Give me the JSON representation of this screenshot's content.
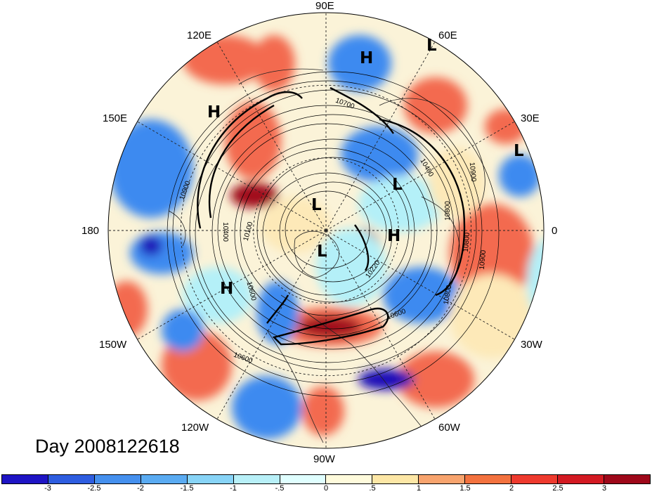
{
  "map": {
    "lon_labels": {
      "e90": "90E",
      "e60": "60E",
      "e30": "30E",
      "zero": "0",
      "w30": "30W",
      "w60": "60W",
      "w90": "90W",
      "w120": "120W",
      "w150": "150W",
      "dateline": "180",
      "e150": "150E",
      "e120": "120E"
    },
    "centers": [
      {
        "id": "h-north",
        "label": "H"
      },
      {
        "id": "l-ne",
        "label": "L"
      },
      {
        "id": "h-nw",
        "label": "H"
      },
      {
        "id": "l-east",
        "label": "L"
      },
      {
        "id": "l-europe",
        "label": "L"
      },
      {
        "id": "l-pole",
        "label": "L"
      },
      {
        "id": "h-atlantic",
        "label": "H"
      },
      {
        "id": "l-center",
        "label": "L"
      },
      {
        "id": "h-sw",
        "label": "H"
      }
    ],
    "contour_labels": {
      "c10900a": "10900",
      "c10400": "10400",
      "c10100": "10100",
      "c10600a": "10600",
      "c10900b": "10900",
      "c10800a": "10800",
      "c10800b": "10800",
      "c10900c": "10900",
      "c10600b": "10600",
      "c10220": "10220",
      "c10600c": "10600",
      "c10800c": "10800",
      "c10700": "10700",
      "c10400b": "10400"
    },
    "colors": {
      "ocean_neutral": "#ffffff",
      "strong_neg": "#1a10b8",
      "neg": "#3d8af0",
      "weak_neg": "#b4f0f8",
      "weak_pos": "#fde9b8",
      "pos": "#f36b4f",
      "strong_pos": "#a1081a"
    }
  },
  "title": {
    "day": "Day 2008122618"
  },
  "colorbar": {
    "colors": [
      "#1e14c4",
      "#2e5de0",
      "#4590ee",
      "#5aabf2",
      "#88d4f7",
      "#b8f0f8",
      "#e0ffff",
      "#fffbdc",
      "#fde7a6",
      "#f8a46e",
      "#f3723f",
      "#ee3a2e",
      "#d31a22",
      "#9e081a"
    ],
    "ticks": [
      "-3",
      "-2.5",
      "-2",
      "-1.5",
      "-1",
      "-.5",
      "0",
      ".5",
      "1",
      "1.5",
      "2",
      "2.5",
      "3"
    ]
  }
}
